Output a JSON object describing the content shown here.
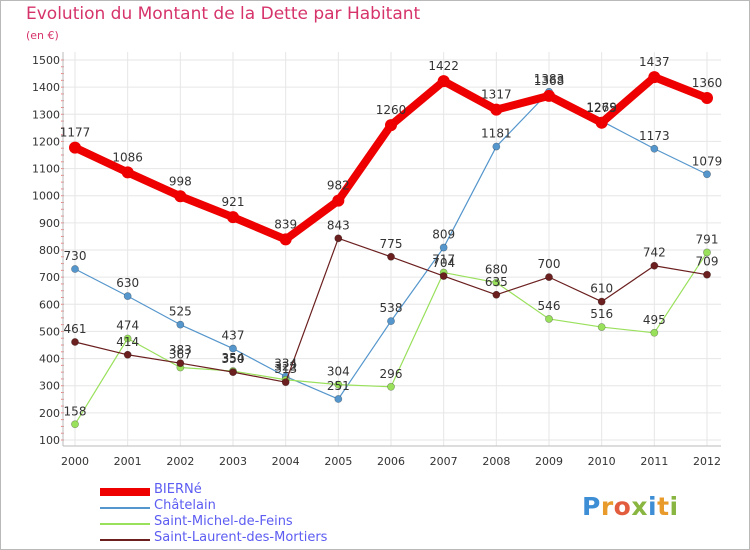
{
  "title": "Evolution du Montant de la Dette par Habitant",
  "subtitle": "(en €)",
  "logo": "Proxiti",
  "chart_data": {
    "type": "line",
    "title": "Evolution du Montant de la Dette par Habitant",
    "ylabel": "(en €)",
    "xlabel": "",
    "x": [
      "2000",
      "2001",
      "2002",
      "2003",
      "2004",
      "2005",
      "2006",
      "2007",
      "2008",
      "2009",
      "2010",
      "2011",
      "2012"
    ],
    "yticks": [
      100,
      200,
      300,
      400,
      500,
      600,
      700,
      800,
      900,
      1000,
      1100,
      1200,
      1300,
      1400,
      1500
    ],
    "ylim": [
      100,
      1500
    ],
    "grid": true,
    "legend_position": "bottom-left",
    "series": [
      {
        "name": "BIERNé",
        "color": "#ee0000",
        "values": [
          1177,
          1086,
          998,
          921,
          839,
          982,
          1260,
          1422,
          1317,
          1368,
          1269,
          1437,
          1360
        ],
        "labels": [
          "1177",
          "1086",
          "998",
          "921",
          "839",
          "982",
          "1260",
          "1422",
          "1317",
          "1368",
          "1269",
          "1437",
          "1360"
        ]
      },
      {
        "name": "Châtelain",
        "color": "#5596cc",
        "values": [
          730,
          630,
          525,
          437,
          334,
          251,
          538,
          809,
          1181,
          1383,
          1275,
          1173,
          1079
        ],
        "labels": [
          "730",
          "630",
          "525",
          "437",
          "334",
          "251",
          "538",
          "809",
          "1181",
          "1383",
          "1275",
          "1173",
          "1079"
        ]
      },
      {
        "name": "Saint-Michel-de-Feins",
        "color": "#99e05b",
        "values": [
          158,
          474,
          367,
          354,
          322,
          304,
          296,
          717,
          680,
          546,
          516,
          495,
          791
        ],
        "labels": [
          "158",
          "474",
          "367",
          "354",
          "322",
          "304",
          "296",
          "717",
          "680",
          "546",
          "516",
          "495",
          "791"
        ]
      },
      {
        "name": "Saint-Laurent-des-Mortiers",
        "color": "#6b1f1f",
        "values": [
          461,
          414,
          383,
          350,
          313,
          843,
          775,
          704,
          635,
          700,
          610,
          742,
          709
        ],
        "labels": [
          "461",
          "414",
          "383",
          "350",
          "313",
          "843",
          "775",
          "704",
          "635",
          "700",
          "610",
          "742",
          "709"
        ]
      }
    ]
  }
}
